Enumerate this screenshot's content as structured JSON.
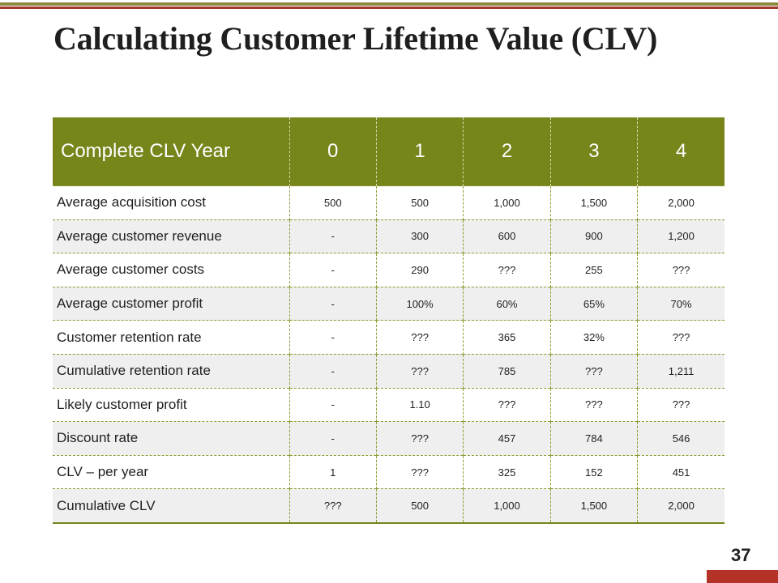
{
  "title": "Calculating Customer Lifetime Value (CLV)",
  "table": {
    "header_label": "Complete CLV Year",
    "years": [
      "0",
      "1",
      "2",
      "3",
      "4"
    ],
    "rows": [
      {
        "label": "Average acquisition cost",
        "values": [
          "500",
          "500",
          "1,000",
          "1,500",
          "2,000"
        ]
      },
      {
        "label": "Average customer revenue",
        "values": [
          "-",
          "300",
          "600",
          "900",
          "1,200"
        ]
      },
      {
        "label": "Average customer costs",
        "values": [
          "-",
          "290",
          "???",
          "255",
          "???"
        ]
      },
      {
        "label": "Average customer profit",
        "values": [
          "-",
          "100%",
          "60%",
          "65%",
          "70%"
        ]
      },
      {
        "label": "Customer retention rate",
        "values": [
          "-",
          "???",
          "365",
          "32%",
          "???"
        ]
      },
      {
        "label": "Cumulative retention rate",
        "values": [
          "-",
          "???",
          "785",
          "???",
          "1,211"
        ]
      },
      {
        "label": "Likely customer profit",
        "values": [
          "-",
          "1.10",
          "???",
          "???",
          "???"
        ]
      },
      {
        "label": "Discount rate",
        "values": [
          "-",
          "???",
          "457",
          "784",
          "546"
        ]
      },
      {
        "label": "CLV – per year",
        "values": [
          "1",
          "???",
          "325",
          "152",
          "451"
        ]
      },
      {
        "label": "Cumulative CLV",
        "values": [
          "???",
          "500",
          "1,000",
          "1,500",
          "2,000"
        ]
      }
    ]
  },
  "page_number": "37",
  "colors": {
    "header": "#77851a",
    "accent_red": "#b53227"
  }
}
